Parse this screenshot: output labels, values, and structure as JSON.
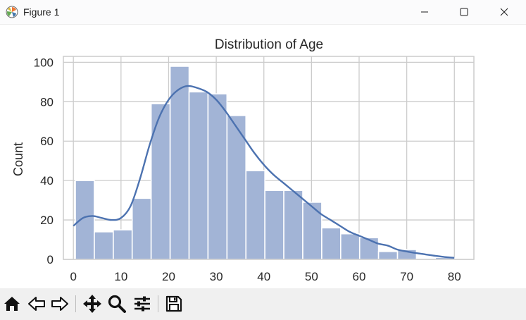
{
  "window": {
    "title": "Figure 1",
    "icons": [
      "matplotlib-app-icon",
      "minimize-icon",
      "maximize-icon",
      "close-icon"
    ]
  },
  "toolbar": {
    "icons": [
      "home-icon",
      "back-arrow-icon",
      "forward-arrow-icon",
      "pan-move-icon",
      "zoom-magnifier-icon",
      "configure-subplots-icon",
      "save-floppy-icon"
    ]
  },
  "colors": {
    "bar_fill": "#a2b4d6",
    "kde_line": "#4c72b0",
    "grid": "#cccccc",
    "toolbar_bg": "#f0f0f0"
  },
  "chart_data": {
    "type": "bar",
    "title": "Distribution of Age",
    "xlabel": "",
    "ylabel": "Count",
    "xlim": [
      -2.1,
      84.1
    ],
    "ylim": [
      0,
      103
    ],
    "grid": true,
    "xticks": [
      0,
      10,
      20,
      30,
      40,
      50,
      60,
      70,
      80
    ],
    "yticks": [
      0,
      20,
      40,
      60,
      80,
      100
    ],
    "bin_edges": [
      0.42,
      4.4,
      8.38,
      12.35,
      16.33,
      20.32,
      24.3,
      28.27,
      32.25,
      36.23,
      40.21,
      44.19,
      48.17,
      52.15,
      56.13,
      60.11,
      64.08,
      68.06,
      72.04,
      76.02,
      80.0
    ],
    "counts": [
      40,
      14,
      15,
      31,
      79,
      98,
      85,
      84,
      73,
      45,
      35,
      35,
      29,
      16,
      13,
      11,
      4,
      5,
      0,
      1
    ],
    "kde": {
      "x": [
        0,
        2,
        4,
        6,
        8,
        10,
        12,
        14,
        16,
        18,
        20,
        22,
        24,
        26,
        28,
        30,
        32,
        34,
        36,
        38,
        40,
        42,
        44,
        46,
        48,
        50,
        52,
        54,
        56,
        58,
        60,
        62,
        64,
        66,
        68,
        70,
        72,
        74,
        76,
        78,
        80
      ],
      "y": [
        17,
        21,
        22,
        21,
        20,
        21,
        27,
        41,
        58,
        72,
        81,
        86,
        88,
        87,
        85,
        81,
        75,
        68,
        61,
        54,
        48,
        43,
        39,
        35,
        31,
        27,
        23,
        20,
        17,
        14,
        12,
        10,
        8,
        7,
        5,
        4,
        3.2,
        2.5,
        1.8,
        1.2,
        0.8
      ]
    }
  }
}
